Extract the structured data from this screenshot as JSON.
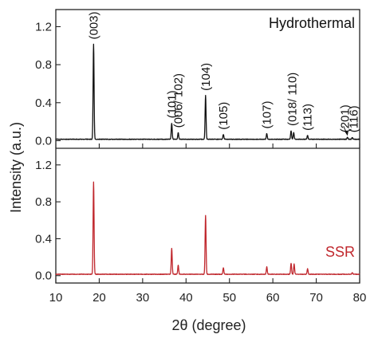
{
  "chart_data": {
    "type": "line",
    "xlabel": "2θ (degree)",
    "ylabel": "Intensity (a.u.)",
    "xlim": [
      10,
      80
    ],
    "x_ticks": [
      "10",
      "20",
      "30",
      "40",
      "50",
      "60",
      "70",
      "80"
    ],
    "grid": false,
    "panels": [
      {
        "name": "Hydrothermal",
        "color": "#111111",
        "ylim": [
          -0.08,
          1.38
        ],
        "y_ticks": [
          "0.0",
          "0.4",
          "0.8",
          "1.2"
        ],
        "label_position": "top-right",
        "baseline": 0.015,
        "peaks": [
          {
            "x": 18.7,
            "y": 1.0
          },
          {
            "x": 36.7,
            "y": 0.17
          },
          {
            "x": 38.2,
            "y": 0.07
          },
          {
            "x": 44.5,
            "y": 0.46
          },
          {
            "x": 48.6,
            "y": 0.05
          },
          {
            "x": 58.6,
            "y": 0.06
          },
          {
            "x": 64.2,
            "y": 0.09
          },
          {
            "x": 64.8,
            "y": 0.07
          },
          {
            "x": 68.0,
            "y": 0.04
          },
          {
            "x": 77.2,
            "y": 0.02
          },
          {
            "x": 78.3,
            "y": 0.02
          }
        ],
        "annotations": [
          {
            "text": "(003)",
            "x": 18.7
          },
          {
            "text": "(101)",
            "x": 36.7
          },
          {
            "text": "(006/ 102)",
            "x": 38.2
          },
          {
            "text": "(104)",
            "x": 44.5
          },
          {
            "text": "(105)",
            "x": 48.6
          },
          {
            "text": "(107)",
            "x": 58.6
          },
          {
            "text": "(018/ 110)",
            "x": 64.5
          },
          {
            "text": "(113)",
            "x": 68.0
          },
          {
            "text": "(201)",
            "x": 76.6
          },
          {
            "text": "(116)",
            "x": 78.6
          }
        ]
      },
      {
        "name": "SSR",
        "color": "#c0272d",
        "ylim": [
          -0.08,
          1.38
        ],
        "y_ticks": [
          "0.0",
          "0.4",
          "0.8",
          "1.2"
        ],
        "label_position": "right",
        "baseline": 0.015,
        "peaks": [
          {
            "x": 18.7,
            "y": 1.0
          },
          {
            "x": 36.7,
            "y": 0.28
          },
          {
            "x": 38.2,
            "y": 0.1
          },
          {
            "x": 44.5,
            "y": 0.64
          },
          {
            "x": 48.6,
            "y": 0.07
          },
          {
            "x": 58.6,
            "y": 0.08
          },
          {
            "x": 64.2,
            "y": 0.12
          },
          {
            "x": 64.9,
            "y": 0.11
          },
          {
            "x": 68.0,
            "y": 0.06
          },
          {
            "x": 78.3,
            "y": 0.02
          }
        ]
      }
    ]
  }
}
